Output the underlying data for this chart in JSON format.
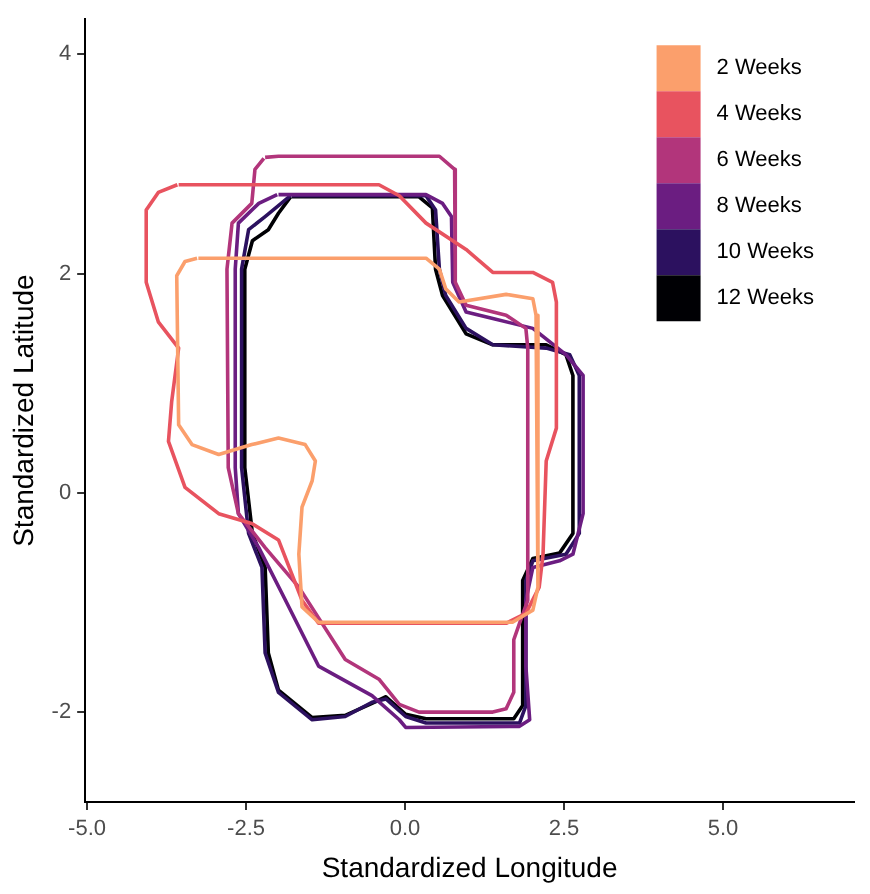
{
  "chart_data": {
    "type": "line",
    "xlabel": "Standardized Longitude",
    "ylabel": "Standardized Latitude",
    "xlim": [
      -5.03,
      7.06
    ],
    "ylim": [
      -2.82,
      4.32
    ],
    "xticks": [
      {
        "value": -5,
        "label": "-5.0"
      },
      {
        "value": -2.5,
        "label": "-2.5"
      },
      {
        "value": 0,
        "label": "0.0"
      },
      {
        "value": 2.5,
        "label": "2.5"
      },
      {
        "value": 5,
        "label": "5.0"
      }
    ],
    "yticks": [
      -2,
      0,
      2,
      4
    ],
    "grid": false,
    "legend": "top right",
    "marker": "none",
    "line_style": "solid",
    "series": [
      {
        "name": "2 Weeks",
        "color": "#fb9f6c",
        "x": [
          -3.25,
          0.33,
          0.54,
          0.64,
          0.85,
          1.59,
          2.01,
          2.06,
          2.09,
          2.01,
          1.69,
          -1.36,
          -1.62,
          -1.67,
          -1.62,
          -1.46,
          -1.41,
          -1.57,
          -1.99,
          -2.41,
          -2.93,
          -3.35,
          -3.56,
          -3.59,
          -3.46,
          -3.27
        ],
        "values": [
          2.14,
          2.14,
          2.04,
          1.86,
          1.74,
          1.81,
          1.77,
          1.62,
          -0.86,
          -1.07,
          -1.18,
          -1.18,
          -1.04,
          -0.56,
          -0.13,
          0.11,
          0.29,
          0.44,
          0.5,
          0.44,
          0.35,
          0.44,
          0.62,
          1.98,
          2.11,
          2.14
        ]
      },
      {
        "name": "4 Weeks",
        "color": "#e8535f",
        "x": [
          -3.56,
          -0.41,
          -0.09,
          0.33,
          0.96,
          1.38,
          2.01,
          2.32,
          2.38,
          2.38,
          2.22,
          2.17,
          2.11,
          1.9,
          1.59,
          -1.36,
          -1.62,
          -1.99,
          -2.41,
          -2.93,
          -3.46,
          -3.72,
          -3.67,
          -3.56,
          -3.88,
          -4.07,
          -4.07,
          -3.88,
          -3.58
        ],
        "values": [
          2.81,
          2.81,
          2.71,
          2.46,
          2.22,
          2.01,
          2.01,
          1.92,
          1.74,
          0.59,
          0.29,
          -0.56,
          -0.86,
          -1.1,
          -1.19,
          -1.19,
          -0.98,
          -0.43,
          -0.28,
          -0.19,
          0.05,
          0.47,
          0.83,
          1.32,
          1.56,
          1.92,
          2.58,
          2.74,
          2.81
        ]
      },
      {
        "name": "6 Weeks",
        "color": "#b2357b",
        "x": [
          -2.2,
          -1.99,
          0.54,
          0.78,
          0.8,
          0.78,
          0.96,
          1.59,
          1.9,
          1.93,
          1.93,
          1.8,
          1.71,
          1.71,
          1.59,
          1.38,
          0.22,
          -0.09,
          -0.41,
          -0.94,
          -1.67,
          -2.2,
          -2.62,
          -2.78,
          -2.8,
          -2.72,
          -2.41,
          -2.36,
          -2.22
        ],
        "values": [
          3.06,
          3.07,
          3.07,
          2.95,
          2.64,
          1.92,
          1.71,
          1.62,
          1.5,
          1.32,
          -0.98,
          -1.19,
          -1.34,
          -1.82,
          -1.97,
          -2.0,
          -2.0,
          -1.93,
          -1.7,
          -1.52,
          -0.86,
          -0.5,
          -0.19,
          0.23,
          2.04,
          2.46,
          2.64,
          2.95,
          3.05
        ]
      },
      {
        "name": "8 Weeks",
        "color": "#6b1d81",
        "x": [
          -1.99,
          0.33,
          0.59,
          0.73,
          0.75,
          0.96,
          1.38,
          2.01,
          2.53,
          2.8,
          2.8,
          2.64,
          2.43,
          2.01,
          1.9,
          1.9,
          1.96,
          1.8,
          0.01,
          -0.09,
          -0.52,
          -1.36,
          -1.88,
          -2.3,
          -2.62,
          -2.67,
          -2.67,
          -2.62,
          -2.3,
          -2.01
        ],
        "values": [
          2.72,
          2.72,
          2.64,
          2.52,
          1.92,
          1.65,
          1.59,
          1.5,
          1.26,
          1.07,
          -0.19,
          -0.56,
          -0.62,
          -0.68,
          -0.98,
          -1.58,
          -2.07,
          -2.13,
          -2.14,
          -2.07,
          -1.85,
          -1.58,
          -0.98,
          -0.5,
          -0.19,
          0.23,
          2.04,
          2.46,
          2.64,
          2.72
        ]
      },
      {
        "name": "10 Weeks",
        "color": "#2c115f",
        "x": [
          -1.78,
          0.33,
          0.48,
          0.54,
          0.64,
          0.96,
          1.38,
          2.22,
          2.59,
          2.74,
          2.74,
          2.53,
          2.01,
          1.9,
          1.9,
          1.8,
          0.33,
          0.01,
          -0.3,
          -0.52,
          -0.94,
          -1.46,
          -1.99,
          -2.2,
          -2.25,
          -2.46,
          -2.57,
          -2.57,
          -2.46,
          -2.2,
          -1.8
        ],
        "values": [
          2.71,
          2.71,
          2.58,
          2.04,
          1.8,
          1.5,
          1.35,
          1.32,
          1.26,
          1.07,
          -0.37,
          -0.56,
          -0.62,
          -0.8,
          -1.94,
          -2.1,
          -2.1,
          -2.04,
          -1.88,
          -1.91,
          -2.04,
          -2.07,
          -1.82,
          -1.46,
          -0.68,
          -0.37,
          0.23,
          2.04,
          2.4,
          2.52,
          2.71
        ]
      },
      {
        "name": "12 Weeks",
        "color": "#000004",
        "x": [
          -1.78,
          0.22,
          0.43,
          0.48,
          0.59,
          0.96,
          1.38,
          2.22,
          2.53,
          2.64,
          2.64,
          2.43,
          2.01,
          1.85,
          1.85,
          1.71,
          0.33,
          0.01,
          -0.3,
          -0.52,
          -0.94,
          -1.46,
          -1.99,
          -2.15,
          -2.2,
          -2.4,
          -2.52,
          -2.52,
          -2.4,
          -2.15,
          -1.99,
          -1.8
        ],
        "values": [
          2.7,
          2.7,
          2.6,
          2.04,
          1.8,
          1.45,
          1.35,
          1.35,
          1.26,
          1.07,
          -0.37,
          -0.55,
          -0.6,
          -0.8,
          -1.94,
          -2.06,
          -2.06,
          -2.02,
          -1.86,
          -1.92,
          -2.03,
          -2.05,
          -1.8,
          -1.46,
          -0.68,
          -0.37,
          0.23,
          2.04,
          2.3,
          2.4,
          2.55,
          2.7
        ]
      }
    ]
  }
}
